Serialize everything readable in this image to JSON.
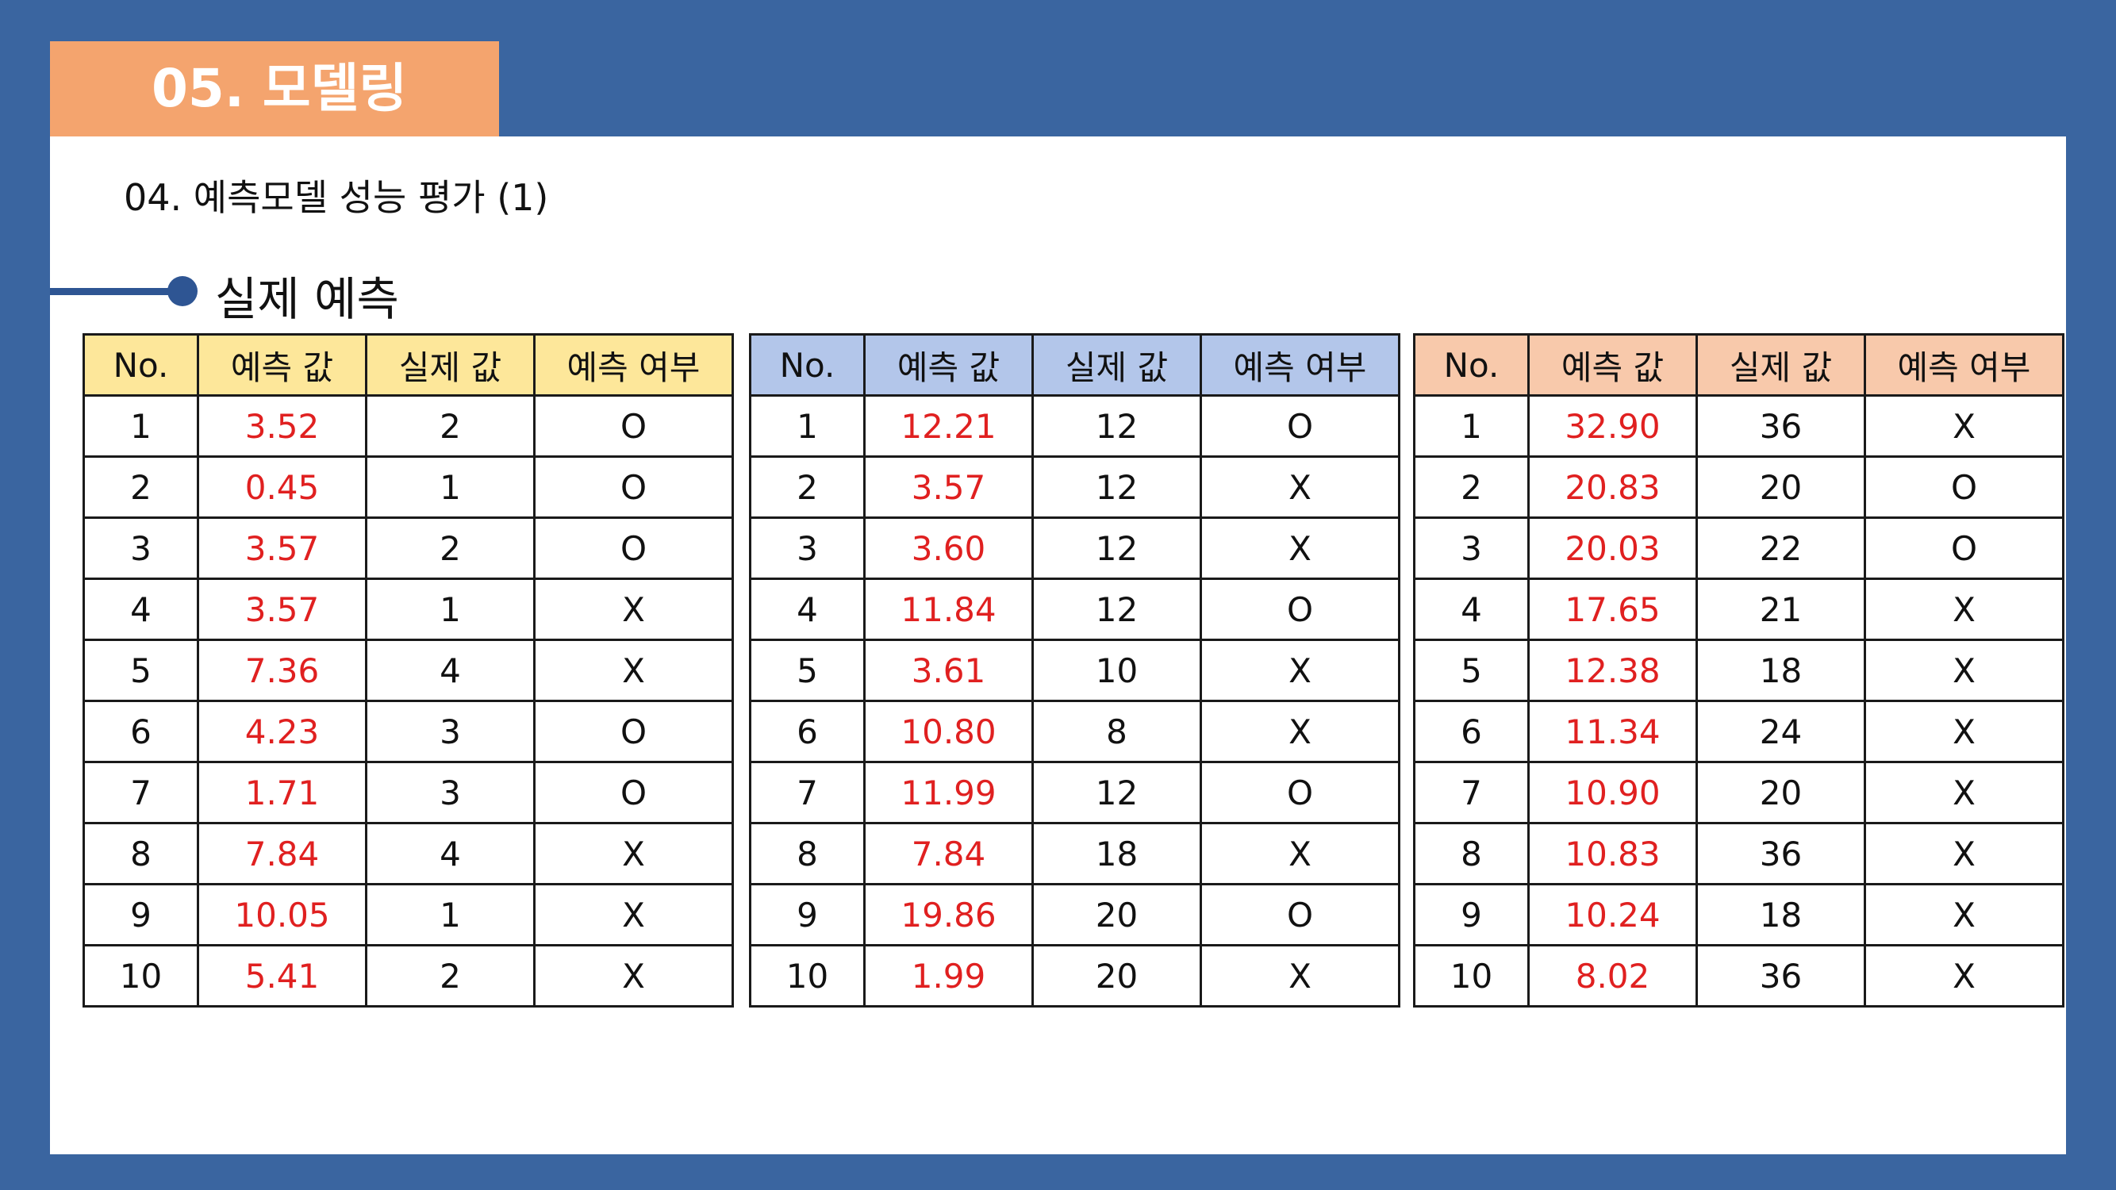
{
  "header": {
    "title": "05. 모델링",
    "subtitle": "04. 예측모델 성능 평가 (1)",
    "section_title": "실제 예측"
  },
  "columns": [
    "No.",
    "예측 값",
    "실제 값",
    "예측 여부"
  ],
  "colors": {
    "background": "#3a65a0",
    "title_tab": "#f4a46e",
    "accent_line": "#2e5593",
    "predicted_text": "#e02020"
  },
  "tables": [
    {
      "header_color": "#fde79a",
      "rows": [
        {
          "no": "1",
          "pred": "3.52",
          "actual": "2",
          "hit": "O"
        },
        {
          "no": "2",
          "pred": "0.45",
          "actual": "1",
          "hit": "O"
        },
        {
          "no": "3",
          "pred": "3.57",
          "actual": "2",
          "hit": "O"
        },
        {
          "no": "4",
          "pred": "3.57",
          "actual": "1",
          "hit": "X"
        },
        {
          "no": "5",
          "pred": "7.36",
          "actual": "4",
          "hit": "X"
        },
        {
          "no": "6",
          "pred": "4.23",
          "actual": "3",
          "hit": "O"
        },
        {
          "no": "7",
          "pred": "1.71",
          "actual": "3",
          "hit": "O"
        },
        {
          "no": "8",
          "pred": "7.84",
          "actual": "4",
          "hit": "X"
        },
        {
          "no": "9",
          "pred": "10.05",
          "actual": "1",
          "hit": "X"
        },
        {
          "no": "10",
          "pred": "5.41",
          "actual": "2",
          "hit": "X"
        }
      ]
    },
    {
      "header_color": "#b3c6ea",
      "rows": [
        {
          "no": "1",
          "pred": "12.21",
          "actual": "12",
          "hit": "O"
        },
        {
          "no": "2",
          "pred": "3.57",
          "actual": "12",
          "hit": "X"
        },
        {
          "no": "3",
          "pred": "3.60",
          "actual": "12",
          "hit": "X"
        },
        {
          "no": "4",
          "pred": "11.84",
          "actual": "12",
          "hit": "O"
        },
        {
          "no": "5",
          "pred": "3.61",
          "actual": "10",
          "hit": "X"
        },
        {
          "no": "6",
          "pred": "10.80",
          "actual": "8",
          "hit": "X"
        },
        {
          "no": "7",
          "pred": "11.99",
          "actual": "12",
          "hit": "O"
        },
        {
          "no": "8",
          "pred": "7.84",
          "actual": "18",
          "hit": "X"
        },
        {
          "no": "9",
          "pred": "19.86",
          "actual": "20",
          "hit": "O"
        },
        {
          "no": "10",
          "pred": "1.99",
          "actual": "20",
          "hit": "X"
        }
      ]
    },
    {
      "header_color": "#f8c9ab",
      "rows": [
        {
          "no": "1",
          "pred": "32.90",
          "actual": "36",
          "hit": "X"
        },
        {
          "no": "2",
          "pred": "20.83",
          "actual": "20",
          "hit": "O"
        },
        {
          "no": "3",
          "pred": "20.03",
          "actual": "22",
          "hit": "O"
        },
        {
          "no": "4",
          "pred": "17.65",
          "actual": "21",
          "hit": "X"
        },
        {
          "no": "5",
          "pred": "12.38",
          "actual": "18",
          "hit": "X"
        },
        {
          "no": "6",
          "pred": "11.34",
          "actual": "24",
          "hit": "X"
        },
        {
          "no": "7",
          "pred": "10.90",
          "actual": "20",
          "hit": "X"
        },
        {
          "no": "8",
          "pred": "10.83",
          "actual": "36",
          "hit": "X"
        },
        {
          "no": "9",
          "pred": "10.24",
          "actual": "18",
          "hit": "X"
        },
        {
          "no": "10",
          "pred": "8.02",
          "actual": "36",
          "hit": "X"
        }
      ]
    }
  ]
}
